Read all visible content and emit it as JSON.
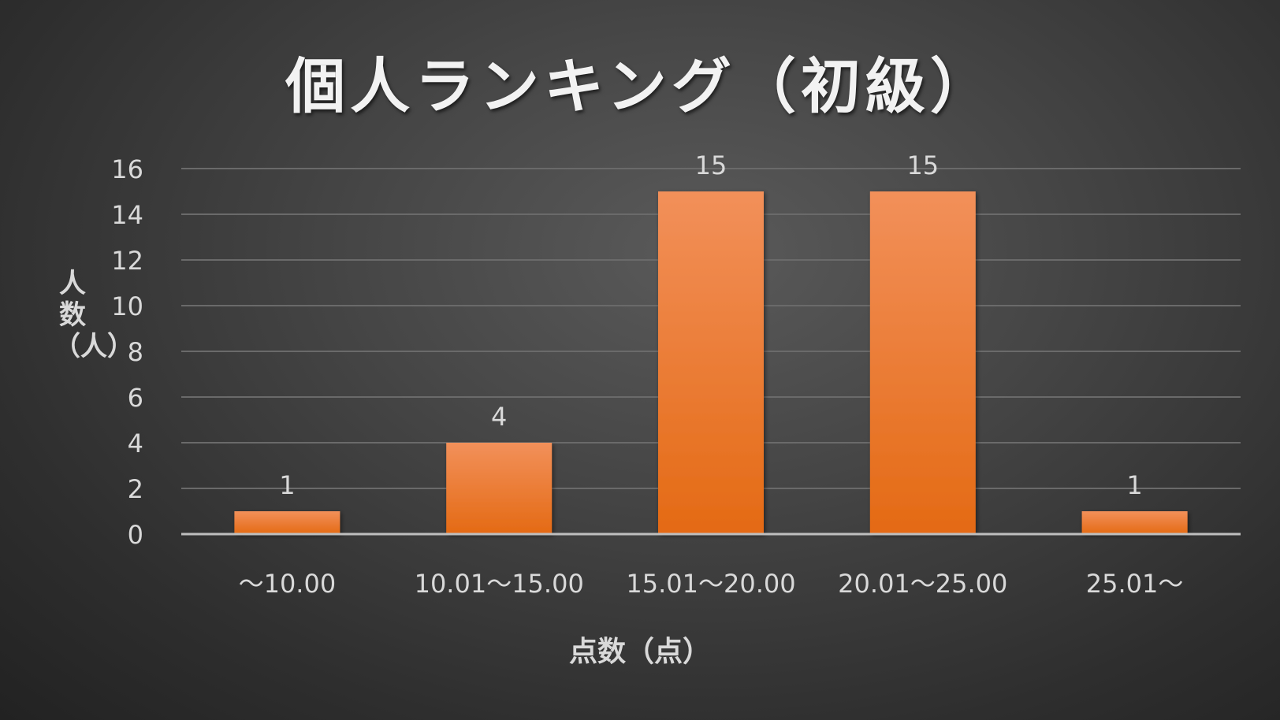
{
  "chart_data": {
    "type": "bar",
    "title": "個人ランキング（初級）",
    "xlabel": "点数（点）",
    "ylabel": "人数（人）",
    "categories": [
      "〜10.00",
      "10.01〜15.00",
      "15.01〜20.00",
      "20.01〜25.00",
      "25.01〜"
    ],
    "values": [
      1,
      4,
      15,
      15,
      1
    ],
    "data_labels": [
      "1",
      "4",
      "15",
      "15",
      "1"
    ],
    "ylim": [
      0,
      16
    ],
    "yticks": [
      0,
      2,
      4,
      6,
      8,
      10,
      12,
      14,
      16
    ],
    "grid": true,
    "legend": "none",
    "colors": {
      "bar_top": "#f2905a",
      "bar_bottom": "#e46a14",
      "grid": "#6a6a6a",
      "axis": "#bfbfbf",
      "tick_text": "#d9d9d9"
    }
  }
}
